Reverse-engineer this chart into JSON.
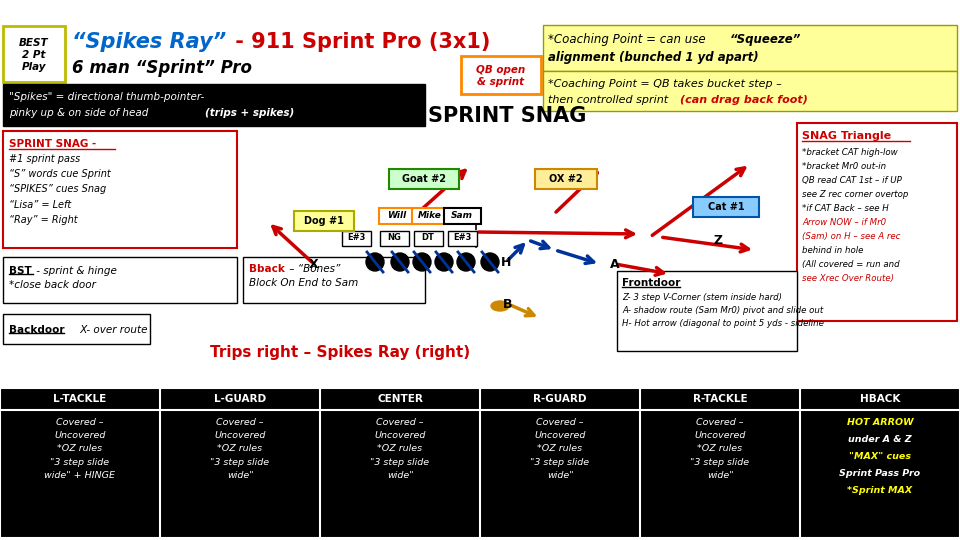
{
  "best_box": "BEST\n2 Pt\nPlay",
  "coaching_point1_a": "*Coaching Point = can use ",
  "coaching_point1_b": "“Squeeze”",
  "coaching_point1_c": "alignment (bunched 1 yd apart)",
  "coaching_point2_a": "*Coaching Point = QB takes bucket step –",
  "coaching_point2_b": "then controlled sprint ",
  "coaching_point2_c": "(can drag back foot)",
  "qb_open": "QB open\n& sprint",
  "spikes_def_a": "\"Spikes\" = directional thumb-pointer-",
  "spikes_def_b": "pinky up & on side of head ",
  "spikes_def_c": "(trips + spikes)",
  "sprint_snag_title": "SPRINT SNAG",
  "snag_triangle_title": "SNAG Triangle",
  "snag_body": "*bracket CAT high-low\n*bracket Mr0 out-in\nQB read CAT 1st – if UP\nsee Z rec corner overtop\n*if CAT Back – see H\nArrow NOW – if Mr0\n(Sam) on H – see A rec\nbehind in hole\n(All covered = run and\nsee Xrec Over Route)",
  "sprint_snag_box_title": "SPRINT SNAG -",
  "sprint_snag_box_body": "#1 sprint pass\n“S” words cue Sprint\n“SPIKES” cues Snag\n“Lisa” = Left\n“Ray” = Right",
  "bst_a": "BST",
  "bst_b": " - sprint & hinge",
  "bst_c": "*close back door",
  "bback_a": "Bback",
  "bback_b": " – “Bones”",
  "bback_c": "Block On End to Sam",
  "backdoor_a": "Backdoor",
  "backdoor_b": "     X- over route",
  "trips_label": "Trips right – Spikes Ray (right)",
  "frontdoor_title": "Frontdoor",
  "frontdoor_body": "Z- 3 step V-Corner (stem inside hard)\nA- shadow route (Sam Mr0) pivot and slide out\nH- Hot arrow (diagonal to point 5 yds - sideline",
  "bg_color": "#ffffff",
  "table_headers": [
    "L-TACKLE",
    "L-GUARD",
    "CENTER",
    "R-GUARD",
    "R-TACKLE",
    "HBACK"
  ],
  "table_body_normal": "Covered –\nUncovered\n*OZ rules\n\"3 step slide\nwide\"",
  "table_body_ltackle": "Covered –\nUncovered\n*OZ rules\n\"3 step slide\nwide\" + HINGE",
  "table_body_hback_lines": [
    "HOT ARROW",
    "under A & Z",
    "\"MAX\" cues",
    "Sprint Pass Pro",
    "*Sprint MAX"
  ],
  "table_body_hback_colors": [
    "#ffff00",
    "#ffffff",
    "#ffff00",
    "#ffffff",
    "#ffff00"
  ]
}
